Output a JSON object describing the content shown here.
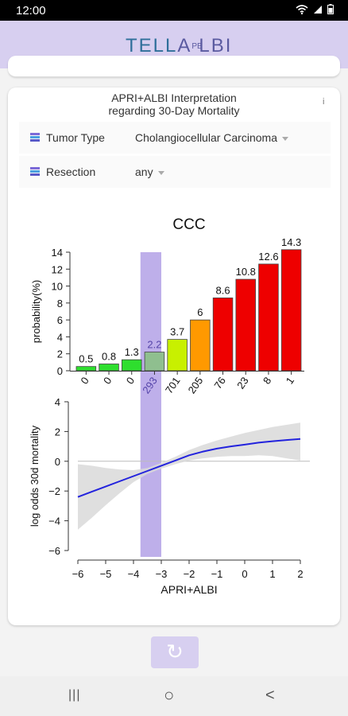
{
  "status": {
    "time": "12:00"
  },
  "brand": {
    "part1": "TELL",
    "part2": "A",
    "part3": "PB",
    "part4": "LBI"
  },
  "card": {
    "title_line1": "APRI+ALBI Interpretation",
    "title_line2": "regarding 30-Day Mortality",
    "info": "i"
  },
  "filters": [
    {
      "label": "Tumor Type",
      "value": "Cholangiocellular Carcinoma"
    },
    {
      "label": "Resection",
      "value": "any"
    }
  ],
  "chart_data": [
    {
      "type": "bar",
      "title": "CCC",
      "ylabel": "probability(%)",
      "ylim": [
        0,
        14
      ],
      "yticks": [
        0,
        2,
        4,
        6,
        8,
        10,
        12,
        14
      ],
      "categories": [
        "0",
        "0",
        "0",
        "293",
        "701",
        "205",
        "76",
        "23",
        "8",
        "1"
      ],
      "values": [
        0.5,
        0.8,
        1.3,
        2.2,
        3.7,
        6,
        8.6,
        10.8,
        12.6,
        14.3
      ],
      "value_labels": [
        "0.5",
        "0.8",
        "1.3",
        "2.2",
        "3.7",
        "6",
        "8.6",
        "10.8",
        "12.6",
        "14.3"
      ],
      "colors": [
        "#2ede2e",
        "#2ede2e",
        "#2ede2e",
        "#8fbf8f",
        "#c8f000",
        "#ff9900",
        "#ee0000",
        "#ee0000",
        "#ee0000",
        "#ee0000"
      ],
      "highlight_index": 3
    },
    {
      "type": "line",
      "xlabel": "APRI+ALBI",
      "ylabel": "log odds 30d mortality",
      "xlim": [
        -6,
        2
      ],
      "ylim": [
        -6,
        4
      ],
      "xticks": [
        -6,
        -5,
        -4,
        -3,
        -2,
        -1,
        0,
        1,
        2
      ],
      "xtick_labels": [
        "−6",
        "−5",
        "−4",
        "−3",
        "−2",
        "−1",
        "0",
        "1",
        "2"
      ],
      "yticks": [
        -6,
        -4,
        -2,
        0,
        2,
        4
      ],
      "ytick_labels": [
        "−6",
        "−4",
        "−2",
        "0",
        "2",
        "4"
      ],
      "highlight_range": [
        -3.75,
        -3
      ],
      "x": [
        -6,
        -5.5,
        -5,
        -4.5,
        -4,
        -3.5,
        -3,
        -2.5,
        -2,
        -1.5,
        -1,
        -0.5,
        0,
        0.5,
        1,
        1.5,
        2
      ],
      "y": [
        -2.4,
        -2.05,
        -1.7,
        -1.35,
        -1.0,
        -0.65,
        -0.3,
        0.05,
        0.4,
        0.65,
        0.85,
        1.0,
        1.12,
        1.25,
        1.35,
        1.43,
        1.5
      ],
      "ci_upper": [
        -0.2,
        -0.3,
        -0.45,
        -0.55,
        -0.6,
        -0.45,
        -0.1,
        0.3,
        0.75,
        1.1,
        1.4,
        1.65,
        1.9,
        2.1,
        2.3,
        2.45,
        2.6
      ],
      "ci_lower": [
        -4.6,
        -3.8,
        -2.95,
        -2.15,
        -1.4,
        -0.85,
        -0.5,
        -0.2,
        0.05,
        0.2,
        0.3,
        0.35,
        0.35,
        0.4,
        0.35,
        0.2,
        0.05
      ],
      "line_color": "#2323dd",
      "band_color": "#d9d9d9",
      "highlight_color": "#b7a6e8"
    }
  ],
  "nav": {
    "refresh": "↻",
    "recents": "|||",
    "home": "○",
    "back": "<"
  }
}
